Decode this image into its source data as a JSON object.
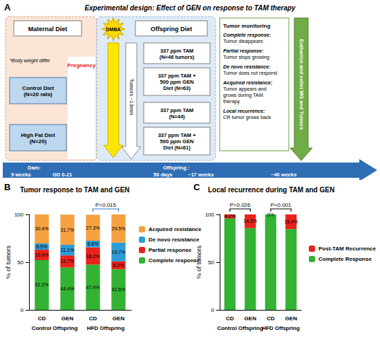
{
  "diagram": {
    "panel_label": "A",
    "title": "Experimental design: Effect of GEN on response to TAM therapy",
    "maternal": {
      "header": "Maternal Diet",
      "note": "*Body weight differ",
      "stage": "Pregnancy",
      "groups": [
        {
          "lines": [
            "Control Diet",
            "(N=20 rats)"
          ]
        },
        {
          "lines": [
            "High Fat Diet",
            "(N=20)"
          ]
        }
      ]
    },
    "carcinogen": "DMBA",
    "offspring": {
      "header": "Offspring Diet",
      "arrow_label": "Tumors ~13mm",
      "arms": [
        {
          "lines": [
            "337 ppm TAM",
            "(N=46 tumors)"
          ]
        },
        {
          "lines": [
            "337 ppm TAM +",
            "500 ppm GEN",
            "Diet (N=63)"
          ]
        },
        {
          "lines": [
            "337 ppm TAM",
            "(N=44)"
          ]
        },
        {
          "lines": [
            "337 ppm TAM +",
            "500 ppm GEN",
            "Diet (N=61)"
          ]
        }
      ]
    },
    "monitoring": {
      "header": "Tumor monitoring",
      "outcomes": [
        {
          "term": "Complete response:",
          "desc": [
            "Tumor disappears"
          ]
        },
        {
          "term": "Partial response:",
          "desc": [
            "Tumor stops growing"
          ]
        },
        {
          "term": "De novo resistance:",
          "desc": [
            "Tumor does not respond"
          ]
        },
        {
          "term": "Acquired resistance:",
          "desc": [
            "Tumor appears and",
            "grows during TAM",
            "therapy"
          ]
        },
        {
          "term": "Local recurrence:",
          "desc": [
            "CR tumor grows back"
          ]
        }
      ]
    },
    "endpoint": "Euthanize and collet MG and Tumors",
    "timeline": [
      "Dam:",
      "9 weeks",
      "GD 0-21",
      "Offspring :",
      "50 days",
      "~17 weeks",
      "~40 weeks"
    ]
  },
  "chart_data": [
    {
      "type": "bar",
      "panel_label": "B",
      "title": "Tumor response to TAM and GEN",
      "y_label": "% of tumors",
      "categories": [
        "CD",
        "GEN",
        "CD",
        "GEN"
      ],
      "groups": [
        "Control Offspring",
        "HFD Offspring"
      ],
      "stacked": true,
      "data_labels": true,
      "legend": "right",
      "grid": false,
      "ylim": [
        0,
        100
      ],
      "yticks": [
        0,
        50,
        100
      ],
      "annotations": [
        {
          "text": "P=0.015",
          "group": "HFD Offspring"
        }
      ],
      "series": [
        {
          "name": "Complete response",
          "color": "#33b233",
          "values": [
            52.2,
            44.4,
            47.4,
            42.6
          ],
          "value_labels": [
            "52.2%",
            "44.4%",
            "47.4%",
            "42.6%"
          ]
        },
        {
          "name": "Partial response",
          "color": "#e8221c",
          "values": [
            10.9,
            12.7,
            18.2,
            8.2
          ],
          "value_labels": [
            "10.9%",
            "12.7%",
            "18.2%",
            "8.2%"
          ]
        },
        {
          "name": "De novo resistance",
          "color": "#2e9bd6",
          "values": [
            6.5,
            11.1,
            6.8,
            19.7
          ],
          "value_labels": [
            "6.5%",
            "11.1%",
            "6.8%",
            "19.7%"
          ]
        },
        {
          "name": "Acquired resistance",
          "color": "#f5a142",
          "values": [
            30.4,
            31.7,
            27.3,
            29.5
          ],
          "value_labels": [
            "30.4%",
            "31.7%",
            "27.3%",
            "29.5%"
          ]
        }
      ]
    },
    {
      "type": "bar",
      "panel_label": "C",
      "title": "Local recurrence during TAM and GEN",
      "y_label": "% of tumors",
      "categories": [
        "CD",
        "GEN",
        "CD",
        "GEN"
      ],
      "groups": [
        "Control Offspring",
        "HFD Offspring"
      ],
      "stacked": true,
      "data_labels": true,
      "legend": "right",
      "grid": false,
      "ylim": [
        0,
        100
      ],
      "yticks": [
        0,
        50,
        100
      ],
      "annotations": [
        {
          "text": "P=0.026",
          "group": "Control Offspring"
        },
        {
          "text": "P<0.001",
          "group": "HFD Offspring"
        }
      ],
      "series": [
        {
          "name": "Complete Response",
          "color": "#33b233",
          "values": [
            95.8,
            85.7,
            100,
            84.6
          ]
        },
        {
          "name": "Post-TAM Recurrence",
          "color": "#e8221c",
          "values": [
            4.2,
            14.3,
            0,
            15.4
          ],
          "value_labels": [
            "4.2%",
            "14.3%",
            "0%",
            "15.4%"
          ]
        }
      ]
    }
  ]
}
